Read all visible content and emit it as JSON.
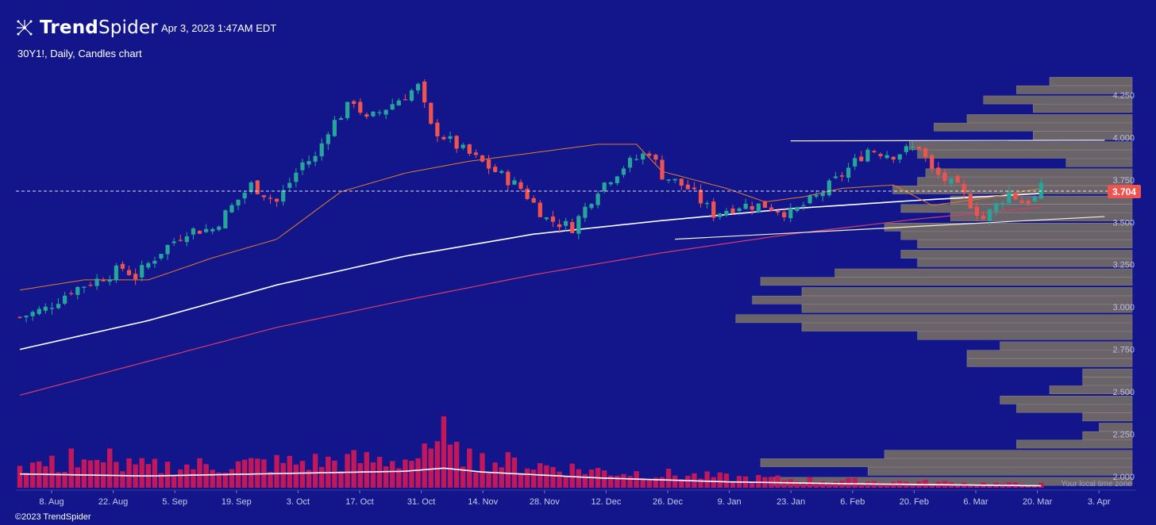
{
  "header": {
    "brand_bold": "Trend",
    "brand_light": "Spider",
    "timestamp": "Apr 3, 2023 1:47AM EDT",
    "symbol_line": "30Y1!, Daily, Candles chart"
  },
  "footer": {
    "copyright": "©2023 TrendSpider",
    "local_time_note": "Your local time zone"
  },
  "colors": {
    "background": "#13168a",
    "up": "#26a69a",
    "down": "#ef5350",
    "volume": "#c2185b",
    "sma200": "#ffffff",
    "ema_pink": "#d63c6d",
    "band": "#e07b2e",
    "trendline": "#ffffff",
    "profile": "#6a6367",
    "price_label_bg": "#ef5350"
  },
  "chart_data": {
    "type": "candlestick",
    "title": "30Y1!, Daily, Candles chart",
    "x_ticks": [
      "8. Aug",
      "22. Aug",
      "5. Sep",
      "19. Sep",
      "3. Oct",
      "17. Oct",
      "31. Oct",
      "14. Nov",
      "28. Nov",
      "12. Dec",
      "26. Dec",
      "9. Jan",
      "23. Jan",
      "6. Feb",
      "20. Feb",
      "6. Mar",
      "20. Mar",
      "3. Apr"
    ],
    "y_ticks": [
      "4.250",
      "4.000",
      "3.750",
      "3.500",
      "3.250",
      "3.000",
      "2.750",
      "2.500",
      "2.250",
      "2.000"
    ],
    "ylim": [
      1.92,
      4.39
    ],
    "last_price": "3.704",
    "close_path": [
      [
        0,
        2.94
      ],
      [
        4,
        2.99
      ],
      [
        8,
        3.1
      ],
      [
        12,
        3.16
      ],
      [
        16,
        3.23
      ],
      [
        18,
        3.18
      ],
      [
        22,
        3.33
      ],
      [
        26,
        3.45
      ],
      [
        30,
        3.46
      ],
      [
        32,
        3.55
      ],
      [
        36,
        3.72
      ],
      [
        40,
        3.62
      ],
      [
        44,
        3.85
      ],
      [
        46,
        3.88
      ],
      [
        48,
        4.05
      ],
      [
        52,
        4.22
      ],
      [
        54,
        4.1
      ],
      [
        58,
        4.2
      ],
      [
        62,
        4.3
      ],
      [
        64,
        4.06
      ],
      [
        68,
        3.95
      ],
      [
        70,
        3.9
      ],
      [
        74,
        3.8
      ],
      [
        78,
        3.7
      ],
      [
        82,
        3.52
      ],
      [
        86,
        3.47
      ],
      [
        90,
        3.7
      ],
      [
        94,
        3.83
      ],
      [
        98,
        3.92
      ],
      [
        100,
        3.78
      ],
      [
        104,
        3.7
      ],
      [
        108,
        3.55
      ],
      [
        112,
        3.6
      ],
      [
        116,
        3.6
      ],
      [
        120,
        3.55
      ],
      [
        124,
        3.65
      ],
      [
        128,
        3.78
      ],
      [
        132,
        3.93
      ],
      [
        136,
        3.9
      ],
      [
        140,
        3.95
      ],
      [
        142,
        3.8
      ],
      [
        146,
        3.7
      ],
      [
        150,
        3.52
      ],
      [
        154,
        3.68
      ],
      [
        156,
        3.62
      ],
      [
        158,
        3.64
      ],
      [
        159,
        3.7
      ]
    ],
    "moving_averages": [
      {
        "kind": "sma",
        "points": [
          [
            0,
            2.75
          ],
          [
            20,
            2.92
          ],
          [
            40,
            3.13
          ],
          [
            60,
            3.3
          ],
          [
            80,
            3.43
          ],
          [
            100,
            3.51
          ],
          [
            120,
            3.58
          ],
          [
            140,
            3.63
          ],
          [
            159,
            3.67
          ]
        ]
      },
      {
        "kind": "ema",
        "points": [
          [
            0,
            2.48
          ],
          [
            20,
            2.68
          ],
          [
            40,
            2.88
          ],
          [
            60,
            3.04
          ],
          [
            80,
            3.19
          ],
          [
            100,
            3.32
          ],
          [
            120,
            3.43
          ],
          [
            140,
            3.52
          ],
          [
            159,
            3.59
          ]
        ]
      },
      {
        "kind": "band",
        "points": [
          [
            0,
            3.1
          ],
          [
            10,
            3.16
          ],
          [
            20,
            3.16
          ],
          [
            30,
            3.29
          ],
          [
            40,
            3.4
          ],
          [
            50,
            3.68
          ],
          [
            60,
            3.79
          ],
          [
            70,
            3.86
          ],
          [
            80,
            3.91
          ],
          [
            90,
            3.96
          ],
          [
            96,
            3.96
          ],
          [
            100,
            3.8
          ],
          [
            110,
            3.7
          ],
          [
            116,
            3.62
          ],
          [
            122,
            3.65
          ],
          [
            128,
            3.7
          ],
          [
            136,
            3.72
          ],
          [
            142,
            3.6
          ],
          [
            150,
            3.64
          ],
          [
            159,
            3.7
          ]
        ]
      }
    ],
    "trendlines": [
      {
        "from": [
          102,
          3.4
        ],
        "to": [
          159,
          3.53
        ]
      },
      {
        "from": [
          120,
          3.98
        ],
        "to": [
          159,
          3.98
        ]
      }
    ],
    "volume": {
      "spike_index": 66,
      "average_line": [
        [
          0,
          0.35
        ],
        [
          20,
          0.3
        ],
        [
          40,
          0.36
        ],
        [
          60,
          0.42
        ],
        [
          66,
          0.5
        ],
        [
          72,
          0.4
        ],
        [
          90,
          0.25
        ],
        [
          110,
          0.15
        ],
        [
          130,
          0.1
        ],
        [
          159,
          0.05
        ]
      ]
    },
    "volume_profile": {
      "levels": [
        4.33,
        4.28,
        4.22,
        4.17,
        4.11,
        4.06,
        4.01,
        3.95,
        3.9,
        3.85,
        3.79,
        3.74,
        3.69,
        3.63,
        3.58,
        3.53,
        3.47,
        3.42,
        3.37,
        3.31,
        3.26,
        3.2,
        3.15,
        3.09,
        3.04,
        2.99,
        2.93,
        2.88,
        2.83,
        2.77,
        2.72,
        2.67,
        2.61,
        2.56,
        2.51,
        2.45,
        2.4,
        2.35,
        2.29,
        2.24,
        2.19,
        2.13,
        2.08,
        2.03,
        1.97
      ],
      "relative_volume": [
        0.1,
        0.14,
        0.18,
        0.12,
        0.2,
        0.24,
        0.12,
        0.27,
        0.26,
        0.08,
        0.25,
        0.26,
        0.29,
        0.22,
        0.28,
        0.22,
        0.3,
        0.28,
        0.26,
        0.28,
        0.26,
        0.36,
        0.45,
        0.4,
        0.46,
        0.4,
        0.48,
        0.4,
        0.26,
        0.16,
        0.2,
        0.2,
        0.06,
        0.06,
        0.1,
        0.16,
        0.14,
        0.06,
        0.04,
        0.06,
        0.14,
        0.3,
        0.45,
        0.32,
        0.44
      ]
    },
    "legend": "none",
    "grid": false
  }
}
